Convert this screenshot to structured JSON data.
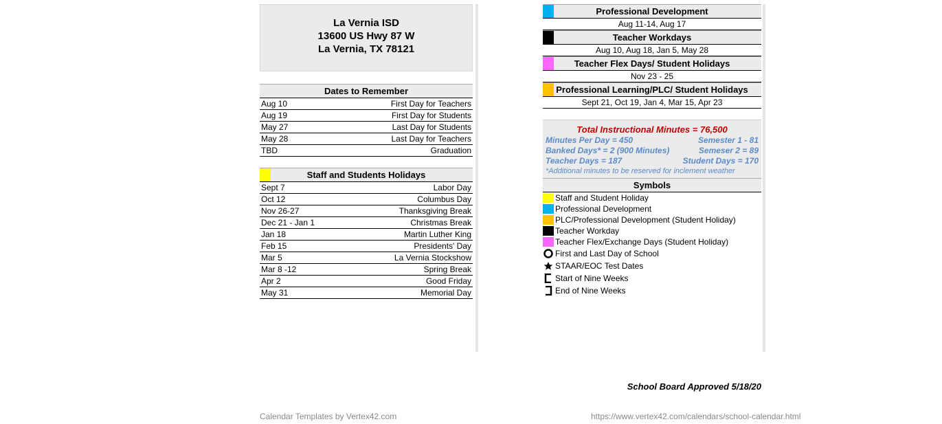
{
  "colors": {
    "yellow": "#ffff00",
    "cyan": "#00b0f0",
    "black": "#000000",
    "magenta": "#ff66ff",
    "orange": "#ffc000",
    "red": "#c00000",
    "blue": "#5b8bc9",
    "gray_bg": "#ebebeb",
    "footer_gray": "#888888"
  },
  "header": {
    "line1": "La Vernia ISD",
    "line2": "13600 US Hwy 87 W",
    "line3": "La Vernia, TX 78121"
  },
  "dates_title": "Dates to Remember",
  "dates": [
    {
      "d": "Aug 10",
      "t": "First Day for Teachers"
    },
    {
      "d": "Aug 19",
      "t": "First Day for Students"
    },
    {
      "d": "May 27",
      "t": "Last Day for Students"
    },
    {
      "d": "May 28",
      "t": "Last Day for Teachers"
    },
    {
      "d": "TBD",
      "t": "Graduation"
    }
  ],
  "holidays_title": "Staff and Students Holidays",
  "holidays": [
    {
      "d": "Sept 7",
      "t": "Labor Day"
    },
    {
      "d": "Oct 12",
      "t": "Columbus Day"
    },
    {
      "d": "Nov 26-27",
      "t": "Thanksgiving Break"
    },
    {
      "d": "Dec 21 - Jan 1",
      "t": "Christmas Break"
    },
    {
      "d": "Jan 18",
      "t": "Martin Luther King"
    },
    {
      "d": "Feb 15",
      "t": "Presidents' Day"
    },
    {
      "d": "Mar 5",
      "t": "La Vernia Stockshow"
    },
    {
      "d": "Mar 8 -12",
      "t": "Spring Break"
    },
    {
      "d": "Apr 2",
      "t": "Good Friday"
    },
    {
      "d": "May 31",
      "t": "Memorial Day"
    }
  ],
  "cat_sections": [
    {
      "title": "Professional Development",
      "dates": "Aug 11-14, Aug 17",
      "color": "#00b0f0"
    },
    {
      "title": "Teacher Workdays",
      "dates": "Aug 10,  Aug 18, Jan 5, May 28",
      "color": "#000000"
    },
    {
      "title": "Teacher Flex Days/ Student Holidays",
      "dates": "Nov 23 - 25",
      "color": "#ff66ff"
    },
    {
      "title": "Professional Learning/PLC/ Student Holidays",
      "dates": "Sept 21, Oct 19, Jan 4, Mar 15, Apr 23",
      "color": "#ffc000"
    }
  ],
  "instructional": {
    "title": "Total Instructional Minutes = 76,500",
    "lines": [
      {
        "l": "Minutes Per Day = 450",
        "r": "Semester 1 - 81"
      },
      {
        "l": "Banked Days* = 2 (900 Minutes)",
        "r": "Semeser 2 = 89"
      },
      {
        "l": "Teacher Days = 187",
        "r": "Student Days = 170"
      }
    ],
    "note": "*Additional minutes to be reserved for inclement weather"
  },
  "symbols_title": "Symbols",
  "symbols": [
    {
      "type": "box",
      "color": "#ffff00",
      "label": "Staff and Student Holiday"
    },
    {
      "type": "box",
      "color": "#00b0f0",
      "label": "Professional Development"
    },
    {
      "type": "box",
      "color": "#ffc000",
      "label": "PLC/Professional Development (Student Holiday)"
    },
    {
      "type": "box",
      "color": "#000000",
      "label": "Teacher Workday"
    },
    {
      "type": "box",
      "color": "#ff66ff",
      "label": "Teacher Flex/Exchange Days (Student Holiday)"
    },
    {
      "type": "circle",
      "label": "First and Last Day of School"
    },
    {
      "type": "star",
      "label": "STAAR/EOC Test Dates"
    },
    {
      "type": "start9",
      "label": "Start of Nine Weeks"
    },
    {
      "type": "end9",
      "label": "End of Nine Weeks"
    }
  ],
  "approved": "School Board Approved 5/18/20",
  "footer_left": "Calendar Templates by Vertex42.com",
  "footer_right": "https://www.vertex42.com/calendars/school-calendar.html"
}
